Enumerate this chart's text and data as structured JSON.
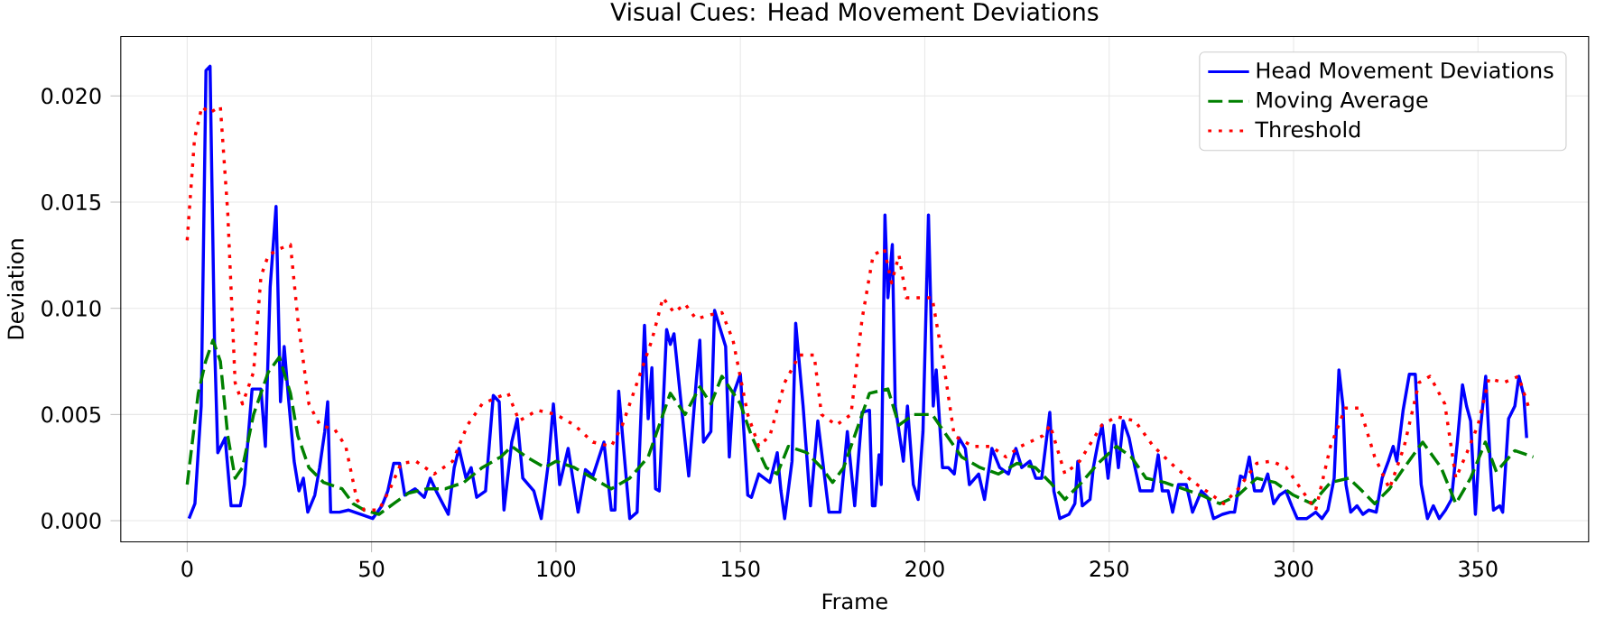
{
  "chart_data": {
    "type": "line",
    "title": "Visual Cues: Head Movement Deviations",
    "xlabel": "Frame",
    "ylabel": "Deviation",
    "xlim": [
      -18,
      380
    ],
    "ylim": [
      -0.001,
      0.0228
    ],
    "xticks": [
      0,
      50,
      100,
      150,
      200,
      250,
      300,
      350
    ],
    "yticks": [
      {
        "value": 0,
        "label": "0.000"
      },
      {
        "value": 0.005,
        "label": "0.005"
      },
      {
        "value": 0.01,
        "label": "0.010"
      },
      {
        "value": 0.015,
        "label": "0.015"
      },
      {
        "value": 0.02,
        "label": "0.020"
      }
    ],
    "grid": true,
    "legend": "top right",
    "series": [
      {
        "name": "Head Movement Deviations",
        "color": "#0000ff",
        "line_style": "solid",
        "x": [
          0.5,
          2.1,
          3.8,
          5.1,
          6.2,
          7.4,
          8.3,
          10.3,
          11.9,
          14.4,
          15.5,
          17.6,
          20,
          21.2,
          22.5,
          24.1,
          25.3,
          26.3,
          27.4,
          29,
          30.3,
          31.5,
          32.7,
          34.6,
          35.9,
          37.3,
          38.1,
          38.9,
          41.3,
          43.8,
          47,
          50.3,
          52.8,
          54.4,
          56,
          57.6,
          59,
          61.8,
          64.3,
          65.9,
          67.5,
          70.8,
          72.4,
          73.7,
          75.6,
          77,
          78.5,
          80.9,
          83,
          84.6,
          85.9,
          88,
          89.5,
          91,
          94,
          96,
          98,
          99.3,
          101,
          103.3,
          106,
          108,
          110,
          113,
          115,
          116,
          117,
          120,
          122,
          124,
          125,
          126,
          127,
          128,
          130,
          131,
          132,
          134,
          136,
          138,
          139,
          140,
          142,
          143,
          146,
          147,
          148,
          150,
          152,
          153,
          155,
          158,
          160,
          161,
          162,
          164,
          165,
          167,
          169,
          171,
          174,
          177,
          179,
          181,
          183,
          185,
          185.8,
          186.5,
          187.6,
          188.2,
          189.2,
          190,
          191.2,
          192,
          194.2,
          195.3,
          196.9,
          198.2,
          199.5,
          201,
          202.3,
          203.1,
          204.8,
          206.4,
          208,
          209.3,
          211,
          212.1,
          214.6,
          216.2,
          218.2,
          220.3,
          222.7,
          224.7,
          226.3,
          228.5,
          230.1,
          231.7,
          233.9,
          235,
          236.6,
          239.1,
          240.7,
          241.5,
          242.7,
          244.8,
          245.7,
          247,
          248.1,
          249.7,
          251.3,
          252.5,
          253.8,
          255.4,
          257,
          258.4,
          260,
          261.7,
          263.3,
          264.4,
          266,
          267.2,
          268.8,
          270.9,
          272.6,
          275,
          276.7,
          278.3,
          280.7,
          282.8,
          284,
          285.6,
          286.8,
          288,
          289.4,
          291.3,
          293,
          294.6,
          296.2,
          297.9,
          299.5,
          301,
          303.6,
          306,
          307.7,
          309.3,
          311,
          312.3,
          313.4,
          314.2,
          315.5,
          317.2,
          318.8,
          320.4,
          322.4,
          324,
          325.7,
          327,
          328,
          329.7,
          331.4,
          333,
          334.6,
          336.3,
          337.9,
          339.5,
          341.2,
          342.8,
          344.4,
          345.8,
          346.9,
          348,
          349.3,
          350.6,
          352.1,
          353.4,
          354.2,
          355.9,
          356.7,
          358.3,
          360,
          361.1,
          362.4,
          363.2
        ],
        "values": [
          0.0001,
          0.0008,
          0.0054,
          0.0212,
          0.0214,
          0.0085,
          0.0032,
          0.0039,
          0.0007,
          0.0007,
          0.0017,
          0.0062,
          0.0062,
          0.0035,
          0.011,
          0.0148,
          0.0056,
          0.0082,
          0.0059,
          0.0028,
          0.0014,
          0.002,
          0.0004,
          0.0012,
          0.0025,
          0.0042,
          0.0056,
          0.0004,
          0.0004,
          0.0005,
          0.0003,
          0.0001,
          0.0007,
          0.0014,
          0.0027,
          0.0027,
          0.0012,
          0.0015,
          0.0011,
          0.002,
          0.0014,
          0.0003,
          0.0025,
          0.0034,
          0.002,
          0.0025,
          0.0011,
          0.0014,
          0.0059,
          0.0056,
          0.0005,
          0.0037,
          0.0048,
          0.002,
          0.0014,
          0.0001,
          0.0028,
          0.0055,
          0.0017,
          0.0034,
          0.0004,
          0.0024,
          0.0021,
          0.0037,
          0.0005,
          0.0005,
          0.0061,
          0.0001,
          0.0004,
          0.0092,
          0.0048,
          0.0072,
          0.0015,
          0.0014,
          0.009,
          0.0083,
          0.0088,
          0.0054,
          0.0021,
          0.0065,
          0.0085,
          0.0037,
          0.0042,
          0.0099,
          0.0082,
          0.003,
          0.0059,
          0.0069,
          0.0012,
          0.0011,
          0.0022,
          0.0018,
          0.0032,
          0.0014,
          0.0001,
          0.0028,
          0.0093,
          0.0054,
          0.0007,
          0.0047,
          0.0004,
          0.0004,
          0.0042,
          0.0007,
          0.0051,
          0.0052,
          0.0007,
          0.0007,
          0.0031,
          0.0017,
          0.0144,
          0.0105,
          0.013,
          0.0054,
          0.0028,
          0.0054,
          0.0017,
          0.001,
          0.0042,
          0.0144,
          0.0054,
          0.0071,
          0.0025,
          0.0025,
          0.0022,
          0.0039,
          0.0034,
          0.0017,
          0.0022,
          0.001,
          0.0034,
          0.0025,
          0.0022,
          0.0034,
          0.0025,
          0.0028,
          0.002,
          0.002,
          0.0051,
          0.0014,
          0.0001,
          0.0003,
          0.0008,
          0.0028,
          0.0007,
          0.001,
          0.0025,
          0.0037,
          0.0045,
          0.002,
          0.0045,
          0.0025,
          0.0047,
          0.0039,
          0.0025,
          0.0014,
          0.0014,
          0.0014,
          0.0031,
          0.0014,
          0.0014,
          0.0004,
          0.0017,
          0.0017,
          0.0004,
          0.0014,
          0.0011,
          0.0001,
          0.0003,
          0.0004,
          0.0004,
          0.0021,
          0.002,
          0.003,
          0.0014,
          0.0014,
          0.0022,
          0.0008,
          0.0012,
          0.0014,
          0.0007,
          0.0001,
          0.0001,
          0.0004,
          0.0001,
          0.0005,
          0.002,
          0.0071,
          0.0054,
          0.0017,
          0.0004,
          0.0007,
          0.0003,
          0.0005,
          0.0004,
          0.002,
          0.0028,
          0.0035,
          0.0028,
          0.0052,
          0.0069,
          0.0069,
          0.0017,
          0.0001,
          0.0007,
          0.0001,
          0.0005,
          0.001,
          0.0037,
          0.0064,
          0.0054,
          0.0047,
          0.0003,
          0.0042,
          0.0068,
          0.0025,
          0.0005,
          0.0007,
          0.0004,
          0.0048,
          0.0054,
          0.0068,
          0.0059,
          0.0039
        ]
      },
      {
        "name": "Moving Average",
        "color": "#008000",
        "line_style": "dashed",
        "x": [
          0,
          3,
          5,
          7,
          9,
          11,
          13,
          15,
          18,
          22,
          25,
          28,
          30,
          33,
          37,
          42,
          45,
          48,
          52,
          56,
          60,
          65,
          70,
          75,
          80,
          85,
          88,
          92,
          97,
          100,
          105,
          110,
          115,
          120,
          125,
          128,
          131,
          135,
          139,
          142,
          145,
          150,
          153,
          157,
          160,
          163,
          168,
          172,
          175,
          178,
          182,
          185,
          190,
          193,
          197,
          202,
          206,
          210,
          215,
          220,
          225,
          230,
          234,
          238,
          242,
          247,
          252,
          256,
          260,
          265,
          270,
          275,
          280,
          285,
          290,
          295,
          300,
          305,
          310,
          315,
          318,
          322,
          326,
          330,
          335,
          340,
          344,
          348,
          352,
          355,
          360,
          365
        ],
        "values": [
          0.0017,
          0.006,
          0.0075,
          0.0085,
          0.0075,
          0.004,
          0.002,
          0.0025,
          0.005,
          0.007,
          0.0077,
          0.006,
          0.004,
          0.0025,
          0.0018,
          0.0015,
          0.0008,
          0.0005,
          0.0003,
          0.0008,
          0.0013,
          0.0015,
          0.0015,
          0.0018,
          0.0025,
          0.003,
          0.0035,
          0.003,
          0.0025,
          0.0028,
          0.0025,
          0.002,
          0.0015,
          0.002,
          0.003,
          0.0045,
          0.006,
          0.005,
          0.0063,
          0.0055,
          0.0068,
          0.0055,
          0.004,
          0.0025,
          0.0022,
          0.0035,
          0.0032,
          0.0025,
          0.0018,
          0.0025,
          0.0045,
          0.006,
          0.0062,
          0.0045,
          0.005,
          0.005,
          0.004,
          0.003,
          0.0025,
          0.0022,
          0.0027,
          0.0025,
          0.0018,
          0.001,
          0.0017,
          0.0027,
          0.0035,
          0.003,
          0.002,
          0.0018,
          0.0015,
          0.0012,
          0.0008,
          0.0012,
          0.002,
          0.0018,
          0.0012,
          0.0008,
          0.0018,
          0.002,
          0.0015,
          0.0008,
          0.0015,
          0.0025,
          0.0037,
          0.0025,
          0.0008,
          0.002,
          0.0037,
          0.0023,
          0.0033,
          0.003
        ]
      },
      {
        "name": "Threshold",
        "color": "#ff0000",
        "line_style": "dotted",
        "x": [
          0,
          2,
          4,
          6,
          9,
          11,
          13,
          15,
          18,
          20,
          22,
          25,
          28,
          30,
          33,
          36,
          40,
          43,
          46,
          48,
          52,
          55,
          58,
          62,
          67,
          72,
          76,
          80,
          84,
          87,
          90,
          95,
          100,
          105,
          110,
          115,
          118,
          122,
          126,
          129,
          132,
          135,
          138,
          142,
          145,
          148,
          152,
          155,
          158,
          162,
          166,
          170,
          172,
          176,
          180,
          183,
          186,
          189,
          191,
          193,
          195,
          199,
          202,
          205,
          208,
          213,
          218,
          222,
          226,
          232,
          234,
          238,
          242,
          248,
          252,
          257,
          262,
          268,
          273,
          278,
          281,
          285,
          290,
          294,
          298,
          302,
          306,
          310,
          314,
          318,
          322,
          326,
          330,
          334,
          337,
          341,
          344,
          347,
          350,
          353,
          357,
          361,
          364
        ],
        "values": [
          0.0132,
          0.018,
          0.0195,
          0.0192,
          0.0195,
          0.0145,
          0.0065,
          0.0055,
          0.007,
          0.0115,
          0.0125,
          0.0128,
          0.013,
          0.0095,
          0.0055,
          0.0045,
          0.0043,
          0.0035,
          0.001,
          0.0005,
          0.0005,
          0.0015,
          0.0027,
          0.0028,
          0.0022,
          0.0028,
          0.0045,
          0.0055,
          0.0058,
          0.006,
          0.0047,
          0.0052,
          0.005,
          0.0045,
          0.0037,
          0.0035,
          0.0045,
          0.0065,
          0.0085,
          0.0105,
          0.0098,
          0.0102,
          0.0095,
          0.0097,
          0.0098,
          0.0085,
          0.005,
          0.0035,
          0.004,
          0.0065,
          0.0078,
          0.0078,
          0.005,
          0.0045,
          0.005,
          0.0095,
          0.0125,
          0.0128,
          0.0112,
          0.0125,
          0.0105,
          0.0105,
          0.0105,
          0.0075,
          0.004,
          0.0035,
          0.0035,
          0.003,
          0.0035,
          0.004,
          0.0045,
          0.0022,
          0.0028,
          0.0045,
          0.0049,
          0.0047,
          0.0035,
          0.0025,
          0.0018,
          0.0012,
          0.0008,
          0.0015,
          0.0027,
          0.0028,
          0.0025,
          0.0015,
          0.0005,
          0.0035,
          0.0053,
          0.0053,
          0.003,
          0.0015,
          0.0035,
          0.0065,
          0.0068,
          0.0055,
          0.002,
          0.0032,
          0.0045,
          0.0067,
          0.0065,
          0.0068,
          0.0052
        ]
      }
    ]
  }
}
